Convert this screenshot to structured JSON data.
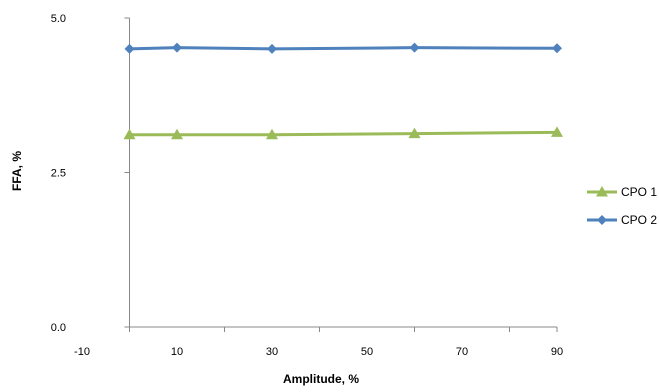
{
  "chart_data": {
    "type": "line",
    "xlabel": "Amplitude, %",
    "ylabel": "FFA, %",
    "xlim": [
      -10,
      90
    ],
    "ylim": [
      0,
      5
    ],
    "x_ticks": [
      "-10",
      "10",
      "30",
      "50",
      "70",
      "90"
    ],
    "y_ticks": [
      "0.0",
      "2.5",
      "5.0"
    ],
    "grid": false,
    "legend_position": "right",
    "series": [
      {
        "name": "CPO 1",
        "marker": "triangle",
        "color": "#9BBB59",
        "x": [
          0,
          10,
          30,
          60,
          90
        ],
        "y": [
          3.11,
          3.11,
          3.11,
          3.13,
          3.15
        ]
      },
      {
        "name": "CPO 2",
        "marker": "diamond",
        "color": "#4F81BD",
        "x": [
          0,
          10,
          30,
          60,
          90
        ],
        "y": [
          4.5,
          4.52,
          4.5,
          4.52,
          4.51
        ]
      }
    ]
  }
}
